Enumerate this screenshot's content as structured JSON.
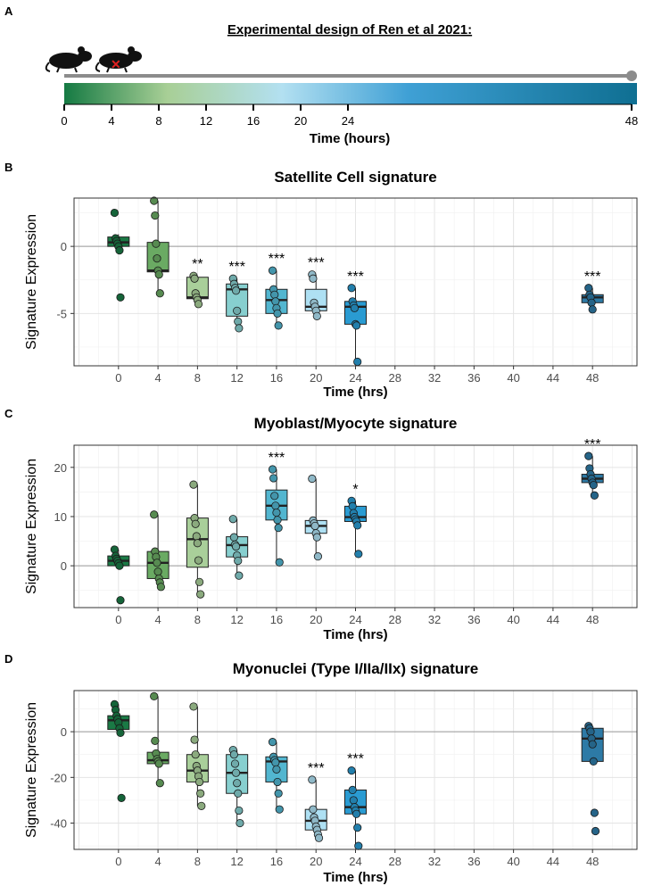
{
  "panel_a": {
    "letter": "A",
    "title": "Experimental design of Ren et al 2021:",
    "ticks": [
      0,
      4,
      8,
      12,
      16,
      20,
      24,
      48
    ],
    "xlabel": "Time (hours)",
    "mouse_icon": "mouse-icon",
    "injured_mouse_icon": "injured-mouse-icon"
  },
  "colors": {
    "0": "#1a7a45",
    "4": "#6aaa63",
    "8": "#a9cf9a",
    "12": "#87cfcf",
    "16": "#52b6d0",
    "20": "#aee0f3",
    "24": "#2a9bd2",
    "48": "#2d7aa6",
    "gradient": [
      "#157a43",
      "#a8cf96",
      "#b3e0f1",
      "#3fa0d5",
      "#0f6f92"
    ]
  },
  "chart_data": [
    {
      "id": "B",
      "type": "box",
      "title": "Satellite Cell signature",
      "xlabel": "Time (hrs)",
      "ylabel": "Signature Expression",
      "x_ticks": [
        0,
        4,
        8,
        12,
        16,
        20,
        24,
        28,
        32,
        36,
        40,
        44,
        48
      ],
      "ylim": [
        -8.9,
        3.6
      ],
      "y_ticks": [
        0,
        -5
      ],
      "groups": [
        {
          "x": 0,
          "q1": 0.0,
          "median": 0.3,
          "q3": 0.7,
          "wlo": -0.3,
          "whi": 0.9,
          "points": [
            2.5,
            0.6,
            0.4,
            0.2,
            0.0,
            -0.3,
            -3.8
          ],
          "sig": ""
        },
        {
          "x": 4,
          "q1": -1.9,
          "median": -1.8,
          "q3": 0.3,
          "wlo": -3.5,
          "whi": 3.4,
          "points": [
            3.4,
            2.3,
            0.2,
            -0.9,
            -1.8,
            -2.1,
            -3.5
          ],
          "sig": ""
        },
        {
          "x": 8,
          "q1": -3.9,
          "median": -3.8,
          "q3": -2.3,
          "wlo": -4.3,
          "whi": -2.2,
          "points": [
            -2.2,
            -2.4,
            -3.5,
            -3.8,
            -4.0,
            -4.3
          ],
          "sig": "**"
        },
        {
          "x": 12,
          "q1": -5.2,
          "median": -3.2,
          "q3": -2.8,
          "wlo": -6.1,
          "whi": -2.4,
          "points": [
            -2.4,
            -2.8,
            -3.1,
            -3.3,
            -4.8,
            -5.6,
            -6.1
          ],
          "sig": "***"
        },
        {
          "x": 16,
          "q1": -5.0,
          "median": -4.0,
          "q3": -3.2,
          "wlo": -5.9,
          "whi": -1.8,
          "points": [
            -1.8,
            -3.2,
            -3.6,
            -4.1,
            -4.6,
            -5.0,
            -5.9
          ],
          "sig": "***"
        },
        {
          "x": 20,
          "q1": -4.8,
          "median": -4.5,
          "q3": -3.2,
          "wlo": -5.2,
          "whi": -2.1,
          "points": [
            -2.1,
            -2.4,
            -4.2,
            -4.5,
            -4.8,
            -5.2
          ],
          "sig": "***"
        },
        {
          "x": 24,
          "q1": -5.8,
          "median": -4.5,
          "q3": -4.1,
          "wlo": -8.6,
          "whi": -3.1,
          "points": [
            -3.1,
            -4.1,
            -4.4,
            -4.6,
            -5.8,
            -5.9,
            -8.6
          ],
          "sig": "***"
        },
        {
          "x": 48,
          "q1": -4.2,
          "median": -3.8,
          "q3": -3.6,
          "wlo": -4.7,
          "whi": -3.1,
          "points": [
            -3.1,
            -3.6,
            -3.8,
            -4.2,
            -4.7
          ],
          "sig": "***"
        }
      ]
    },
    {
      "id": "C",
      "type": "box",
      "title": "Myoblast/Myocyte signature",
      "xlabel": "Time (hrs)",
      "ylabel": "Signature Expression",
      "x_ticks": [
        0,
        4,
        8,
        12,
        16,
        20,
        24,
        28,
        32,
        36,
        40,
        44,
        48
      ],
      "ylim": [
        -8.5,
        24.5
      ],
      "y_ticks": [
        20,
        10,
        0
      ],
      "groups": [
        {
          "x": 0,
          "q1": 0.0,
          "median": 1.0,
          "q3": 2.0,
          "wlo": -0.5,
          "whi": 3.3,
          "points": [
            3.3,
            2.0,
            1.4,
            1.0,
            0.5,
            0.0,
            -7.0
          ],
          "sig": ""
        },
        {
          "x": 4,
          "q1": -2.6,
          "median": 0.6,
          "q3": 2.9,
          "wlo": -4.3,
          "whi": 10.4,
          "points": [
            10.4,
            2.9,
            1.8,
            0.6,
            -1.2,
            -2.6,
            -3.4,
            -4.3
          ],
          "sig": ""
        },
        {
          "x": 8,
          "q1": -0.3,
          "median": 5.4,
          "q3": 9.7,
          "wlo": -5.8,
          "whi": 16.5,
          "points": [
            16.5,
            9.7,
            8.5,
            6.0,
            4.6,
            1.1,
            -3.3,
            -5.8
          ],
          "sig": ""
        },
        {
          "x": 12,
          "q1": 1.8,
          "median": 4.2,
          "q3": 5.9,
          "wlo": -2.0,
          "whi": 9.5,
          "points": [
            9.5,
            5.8,
            4.3,
            3.9,
            2.1,
            1.0,
            -2.0
          ],
          "sig": ""
        },
        {
          "x": 16,
          "q1": 9.3,
          "median": 12.2,
          "q3": 15.4,
          "wlo": 0.7,
          "whi": 19.6,
          "points": [
            19.6,
            17.8,
            14.2,
            12.2,
            10.8,
            9.3,
            7.7,
            0.7
          ],
          "sig": "***"
        },
        {
          "x": 20,
          "q1": 6.6,
          "median": 8.1,
          "q3": 9.2,
          "wlo": 1.9,
          "whi": 17.7,
          "points": [
            17.7,
            9.2,
            8.6,
            8.1,
            6.6,
            5.8,
            1.9
          ],
          "sig": ""
        },
        {
          "x": 24,
          "q1": 9.0,
          "median": 9.9,
          "q3": 12.1,
          "wlo": 2.4,
          "whi": 13.2,
          "points": [
            13.2,
            12.1,
            10.7,
            9.9,
            9.4,
            9.0,
            8.2,
            2.4
          ],
          "sig": "*"
        },
        {
          "x": 48,
          "q1": 16.9,
          "median": 17.7,
          "q3": 18.6,
          "wlo": 14.3,
          "whi": 22.3,
          "points": [
            22.3,
            19.8,
            18.6,
            17.7,
            16.9,
            16.4,
            14.3
          ],
          "sig": "***"
        }
      ]
    },
    {
      "id": "D",
      "type": "box",
      "title": "Myonuclei (Type I/IIa/IIx) signature",
      "xlabel": "Time (hrs)",
      "ylabel": "Signature Expression",
      "x_ticks": [
        0,
        4,
        8,
        12,
        16,
        20,
        24,
        28,
        32,
        36,
        40,
        44,
        48
      ],
      "ylim": [
        -51.5,
        18.0
      ],
      "y_ticks": [
        0,
        -20,
        -40
      ],
      "groups": [
        {
          "x": 0,
          "q1": 1.0,
          "median": 5.0,
          "q3": 7.0,
          "wlo": -0.5,
          "whi": 12.0,
          "points": [
            12.0,
            9.5,
            7.0,
            5.5,
            4.0,
            1.5,
            -0.5,
            -29.0
          ],
          "sig": ""
        },
        {
          "x": 4,
          "q1": -14.0,
          "median": -12.5,
          "q3": -9.0,
          "wlo": -22.5,
          "whi": 15.5,
          "points": [
            15.5,
            -4.0,
            -9.5,
            -12.0,
            -13.0,
            -14.0,
            -22.5
          ],
          "sig": ""
        },
        {
          "x": 8,
          "q1": -22.0,
          "median": -17.0,
          "q3": -10.0,
          "wlo": -32.5,
          "whi": 11.0,
          "points": [
            11.0,
            -3.5,
            -10.0,
            -15.0,
            -17.0,
            -19.5,
            -22.0,
            -27.0,
            -32.5
          ],
          "sig": ""
        },
        {
          "x": 12,
          "q1": -27.0,
          "median": -18.0,
          "q3": -10.0,
          "wlo": -40.0,
          "whi": -8.0,
          "points": [
            -8.0,
            -10.0,
            -14.0,
            -18.0,
            -22.5,
            -27.0,
            -34.5,
            -40.0
          ],
          "sig": ""
        },
        {
          "x": 16,
          "q1": -22.0,
          "median": -13.0,
          "q3": -11.0,
          "wlo": -34.0,
          "whi": -4.5,
          "points": [
            -4.5,
            -11.0,
            -12.5,
            -13.5,
            -16.5,
            -22.0,
            -27.0,
            -34.0
          ],
          "sig": ""
        },
        {
          "x": 20,
          "q1": -43.0,
          "median": -39.0,
          "q3": -34.0,
          "wlo": -46.5,
          "whi": -21.0,
          "points": [
            -21.0,
            -34.0,
            -37.5,
            -39.0,
            -41.5,
            -43.0,
            -45.0,
            -46.5
          ],
          "sig": "***"
        },
        {
          "x": 24,
          "q1": -36.0,
          "median": -33.0,
          "q3": -25.5,
          "wlo": -50.0,
          "whi": -17.0,
          "points": [
            -17.0,
            -25.5,
            -30.0,
            -33.0,
            -34.5,
            -36.0,
            -42.0,
            -50.0
          ],
          "sig": "***"
        },
        {
          "x": 48,
          "q1": -13.0,
          "median": -3.0,
          "q3": 1.5,
          "wlo": -13.0,
          "whi": 2.5,
          "points": [
            2.5,
            1.5,
            0.0,
            -3.0,
            -5.5,
            -13.0,
            -35.5,
            -43.5
          ],
          "sig": ""
        }
      ]
    }
  ]
}
